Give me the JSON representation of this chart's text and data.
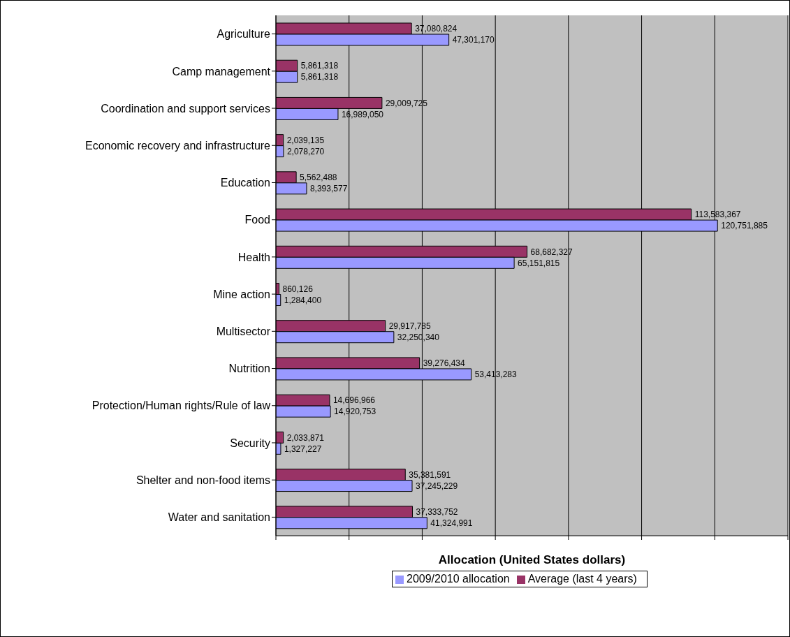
{
  "chart_data": {
    "type": "bar",
    "orientation": "horizontal",
    "xlabel": "Allocation (United States dollars)",
    "categories": [
      "Agriculture",
      "Camp management",
      "Coordination and support services",
      "Economic recovery and infrastructure",
      "Education",
      "Food",
      "Health",
      "Mine action",
      "Multisector",
      "Nutrition",
      "Protection/Human rights/Rule of law",
      "Security",
      "Shelter and non-food items",
      "Water and sanitation"
    ],
    "series": [
      {
        "name": "Average (last 4 years)",
        "color": "#993366",
        "values": [
          37080824,
          5861318,
          29009725,
          2039135,
          5562488,
          113583367,
          68682327,
          860126,
          29917785,
          39276434,
          14696966,
          2033871,
          35381591,
          37333752
        ],
        "value_labels": [
          "37,080,824",
          "5,861,318",
          "29,009,725",
          "2,039,135",
          "5,562,488",
          "113,583,367",
          "68,682,327",
          "860,126",
          "29,917,785",
          "39,276,434",
          "14,696,966",
          "2,033,871",
          "35,381,591",
          "37,333,752"
        ]
      },
      {
        "name": "2009/2010 allocation",
        "color": "#9999ff",
        "values": [
          47301170,
          5861318,
          16989050,
          2078270,
          8393577,
          120751885,
          65151815,
          1284400,
          32250340,
          53413283,
          14920753,
          1327227,
          37245229,
          41324991
        ],
        "value_labels": [
          "47,301,170",
          "5,861,318",
          "16,989,050",
          "2,078,270",
          "8,393,577",
          "120,751,885",
          "65,151,815",
          "1,284,400",
          "32,250,340",
          "53,413,283",
          "14,920,753",
          "1,327,227",
          "37,245,229",
          "41,324,991"
        ]
      }
    ],
    "xlim": [
      0,
      140000000
    ],
    "xticks": [
      {
        "value": 0,
        "label": null
      },
      {
        "value": 20000000,
        "label": null
      },
      {
        "value": 40000000,
        "label": null
      },
      {
        "value": 60000000,
        "label": null
      },
      {
        "value": 80000000,
        "label": null
      },
      {
        "value": 100000000,
        "label": null
      },
      {
        "value": 120000000,
        "label": null
      },
      {
        "value": 140000000,
        "label": null
      }
    ],
    "grid": "x",
    "legend": "bottom",
    "tick_labels": "y"
  }
}
